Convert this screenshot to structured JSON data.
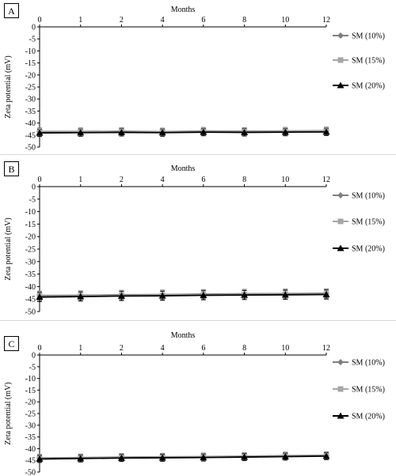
{
  "chart_data": [
    {
      "type": "line",
      "panel_label": "A",
      "xlabel": "Months",
      "ylabel": "Zeta potential (mV)",
      "x": [
        0,
        1,
        2,
        4,
        6,
        8,
        10,
        12
      ],
      "xlim": [
        0,
        12
      ],
      "ylim": [
        -50,
        0
      ],
      "yticks": [
        0,
        -5,
        -10,
        -15,
        -20,
        -25,
        -30,
        -35,
        -40,
        -45,
        -50
      ],
      "series": [
        {
          "name": "SM (10%)",
          "color": "#7f7f7f",
          "marker": "diamond",
          "values": [
            -43.5,
            -43.5,
            -43.4,
            -43.6,
            -43.3,
            -43.4,
            -43.3,
            -43.2
          ],
          "error": [
            1.5,
            1.5,
            1.5,
            1.5,
            1.5,
            1.5,
            1.5,
            1.5
          ]
        },
        {
          "name": "SM (15%)",
          "color": "#a6a6a6",
          "marker": "square",
          "values": [
            -43.8,
            -43.7,
            -43.6,
            -43.7,
            -43.5,
            -43.6,
            -43.5,
            -43.4
          ],
          "error": [
            1.5,
            1.5,
            1.5,
            1.5,
            1.5,
            1.5,
            1.5,
            1.5
          ]
        },
        {
          "name": "SM (20%)",
          "color": "#000000",
          "marker": "triangle",
          "values": [
            -44.1,
            -44.0,
            -43.9,
            -44.0,
            -43.8,
            -43.9,
            -43.8,
            -43.7
          ],
          "error": [
            1.5,
            1.5,
            1.5,
            1.5,
            1.5,
            1.5,
            1.5,
            1.5
          ]
        }
      ],
      "legend_position": "right"
    },
    {
      "type": "line",
      "panel_label": "B",
      "xlabel": "Months",
      "ylabel": "Zeta potential (mV)",
      "x": [
        0,
        1,
        2,
        4,
        6,
        8,
        10,
        12
      ],
      "xlim": [
        0,
        12
      ],
      "ylim": [
        -50,
        0
      ],
      "yticks": [
        0,
        -5,
        -10,
        -15,
        -20,
        -25,
        -30,
        -35,
        -40,
        -45,
        -50
      ],
      "series": [
        {
          "name": "SM (10%)",
          "color": "#7f7f7f",
          "marker": "diamond",
          "values": [
            -43.6,
            -43.5,
            -43.3,
            -43.2,
            -43.0,
            -42.9,
            -42.8,
            -42.7
          ],
          "error": [
            1.8,
            1.8,
            1.8,
            1.8,
            1.8,
            1.8,
            1.8,
            1.8
          ]
        },
        {
          "name": "SM (15%)",
          "color": "#a6a6a6",
          "marker": "square",
          "values": [
            -43.9,
            -43.8,
            -43.6,
            -43.5,
            -43.3,
            -43.2,
            -43.1,
            -43.0
          ],
          "error": [
            1.8,
            1.8,
            1.8,
            1.8,
            1.8,
            1.8,
            1.8,
            1.8
          ]
        },
        {
          "name": "SM (20%)",
          "color": "#000000",
          "marker": "triangle",
          "values": [
            -44.2,
            -44.0,
            -43.8,
            -43.7,
            -43.5,
            -43.4,
            -43.3,
            -43.2
          ],
          "error": [
            1.8,
            1.8,
            1.8,
            1.8,
            1.8,
            1.8,
            1.8,
            1.8
          ]
        }
      ],
      "legend_position": "right"
    },
    {
      "type": "line",
      "panel_label": "C",
      "xlabel": "Months",
      "ylabel": "Zeta potential (mV)",
      "x": [
        0,
        1,
        2,
        4,
        6,
        8,
        10,
        12
      ],
      "xlim": [
        0,
        12
      ],
      "ylim": [
        -50,
        0
      ],
      "yticks": [
        0,
        -5,
        -10,
        -15,
        -20,
        -25,
        -30,
        -35,
        -40,
        -45,
        -50
      ],
      "series": [
        {
          "name": "SM (10%)",
          "color": "#7f7f7f",
          "marker": "diamond",
          "values": [
            -44.0,
            -43.8,
            -43.6,
            -43.5,
            -43.4,
            -43.2,
            -43.0,
            -42.8
          ],
          "error": [
            1.5,
            1.5,
            1.5,
            1.5,
            1.5,
            1.5,
            1.5,
            1.5
          ]
        },
        {
          "name": "SM (15%)",
          "color": "#a6a6a6",
          "marker": "square",
          "values": [
            -44.2,
            -44.0,
            -43.8,
            -43.7,
            -43.6,
            -43.4,
            -43.2,
            -43.0
          ],
          "error": [
            1.5,
            1.5,
            1.5,
            1.5,
            1.5,
            1.5,
            1.5,
            1.5
          ]
        },
        {
          "name": "SM (20%)",
          "color": "#000000",
          "marker": "triangle",
          "values": [
            -44.4,
            -44.2,
            -44.0,
            -43.9,
            -43.8,
            -43.6,
            -43.4,
            -43.2
          ],
          "error": [
            1.5,
            1.5,
            1.5,
            1.5,
            1.5,
            1.5,
            1.5,
            1.5
          ]
        }
      ],
      "legend_position": "right"
    }
  ]
}
